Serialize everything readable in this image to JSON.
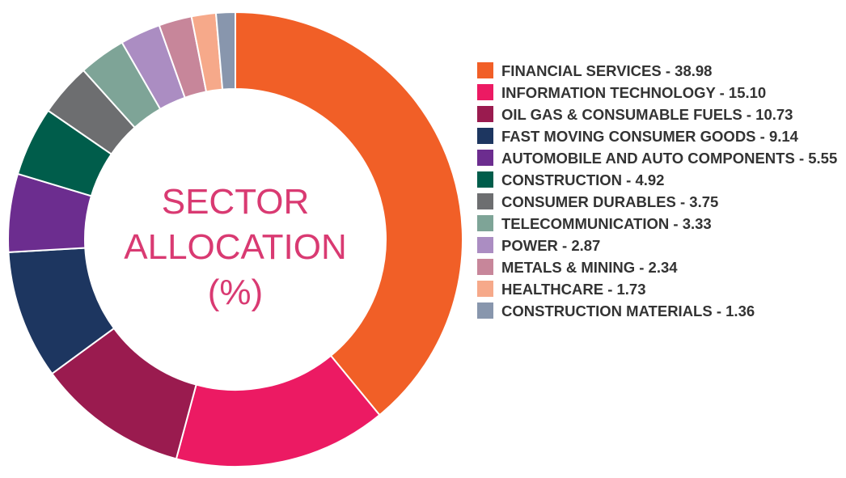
{
  "chart_data": {
    "type": "donut",
    "title": "SECTOR ALLOCATION (%)",
    "categories": [
      "FINANCIAL SERVICES - 38.98",
      "INFORMATION TECHNOLOGY - 15.10",
      "OIL GAS & CONSUMABLE FUELS - 10.73",
      "FAST MOVING CONSUMER GOODS - 9.14",
      "AUTOMOBILE AND AUTO COMPONENTS - 5.55",
      "CONSTRUCTION - 4.92",
      "CONSUMER DURABLES - 3.75",
      "TELECOMMUNICATION - 3.33",
      "POWER - 2.87",
      "METALS & MINING - 2.34",
      "HEALTHCARE - 1.73",
      "CONSTRUCTION MATERIALS - 1.36"
    ],
    "values": [
      38.98,
      15.1,
      10.73,
      9.14,
      5.55,
      4.92,
      3.75,
      3.33,
      2.87,
      2.34,
      1.73,
      1.36
    ],
    "colors": [
      "#f15f27",
      "#ec1a63",
      "#9a1b4f",
      "#1d3660",
      "#6c2d8f",
      "#005d4b",
      "#6d6e70",
      "#7ea497",
      "#ab8dc2",
      "#c7869a",
      "#f6a98a",
      "#8896ad"
    ],
    "legend": "right"
  }
}
